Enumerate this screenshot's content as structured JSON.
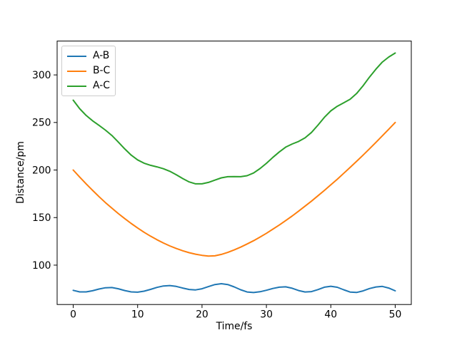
{
  "figure": {
    "background": "#ffffff"
  },
  "chart_data": {
    "type": "line",
    "xlabel": "Time/fs",
    "ylabel": "Distance/pm",
    "xlim": [
      -2.5,
      52.5
    ],
    "ylim": [
      58.6,
      335.6
    ],
    "x_ticks": [
      0,
      10,
      20,
      30,
      40,
      50
    ],
    "y_ticks": [
      100,
      150,
      200,
      250,
      300
    ],
    "grid": false,
    "legend": {
      "position": "upper-left",
      "border_color": "#cccccc",
      "background": "#ffffff"
    },
    "x": [
      0,
      1,
      2,
      3,
      4,
      5,
      6,
      7,
      8,
      9,
      10,
      11,
      12,
      13,
      14,
      15,
      16,
      17,
      18,
      19,
      20,
      21,
      22,
      23,
      24,
      25,
      26,
      27,
      28,
      29,
      30,
      31,
      32,
      33,
      34,
      35,
      36,
      37,
      38,
      39,
      40,
      41,
      42,
      43,
      44,
      45,
      46,
      47,
      48,
      49,
      50
    ],
    "series": [
      {
        "name": "A-B",
        "color": "#1f77b4",
        "values": [
          73.5,
          71.9,
          71.9,
          73.1,
          74.9,
          76.2,
          76.4,
          75.2,
          73.3,
          71.9,
          71.6,
          72.6,
          74.5,
          76.6,
          78.1,
          78.5,
          77.6,
          75.9,
          74.4,
          74.0,
          75.2,
          77.4,
          79.6,
          80.5,
          79.6,
          77.1,
          74.1,
          71.8,
          71.2,
          72.0,
          73.6,
          75.5,
          76.8,
          77.2,
          75.7,
          73.3,
          71.8,
          72.2,
          74.3,
          76.8,
          77.8,
          76.7,
          74.1,
          71.7,
          71.3,
          72.9,
          75.4,
          77.0,
          77.6,
          75.9,
          73.0
        ]
      },
      {
        "name": "B-C",
        "color": "#ff7f0e",
        "values": [
          200.0,
          192.6,
          185.5,
          178.7,
          172.1,
          165.8,
          159.9,
          154.2,
          148.9,
          143.8,
          139.1,
          134.6,
          130.5,
          126.7,
          123.3,
          120.2,
          117.5,
          115.1,
          113.1,
          111.5,
          110.3,
          109.6,
          109.8,
          111.3,
          113.4,
          116.0,
          118.9,
          122.2,
          125.7,
          129.5,
          133.5,
          137.8,
          142.2,
          146.9,
          151.7,
          156.8,
          162.0,
          167.3,
          172.9,
          178.6,
          184.4,
          190.3,
          196.5,
          202.7,
          209.1,
          215.6,
          222.3,
          229.0,
          235.9,
          242.9,
          250.0
        ]
      },
      {
        "name": "A-C",
        "color": "#2ca02c",
        "values": [
          273.5,
          264.5,
          257.4,
          251.8,
          247.0,
          242.0,
          236.3,
          229.4,
          222.2,
          215.7,
          210.7,
          207.2,
          205.0,
          203.3,
          201.4,
          198.7,
          195.1,
          191.0,
          187.5,
          185.5,
          185.5,
          187.0,
          189.4,
          191.8,
          193.0,
          193.1,
          193.0,
          194.0,
          196.9,
          201.5,
          207.1,
          213.3,
          219.0,
          224.1,
          227.4,
          230.1,
          233.8,
          239.5,
          247.2,
          255.4,
          262.2,
          267.0,
          270.6,
          274.4,
          280.4,
          288.5,
          297.7,
          306.0,
          313.5,
          318.8,
          323.0
        ]
      }
    ]
  }
}
